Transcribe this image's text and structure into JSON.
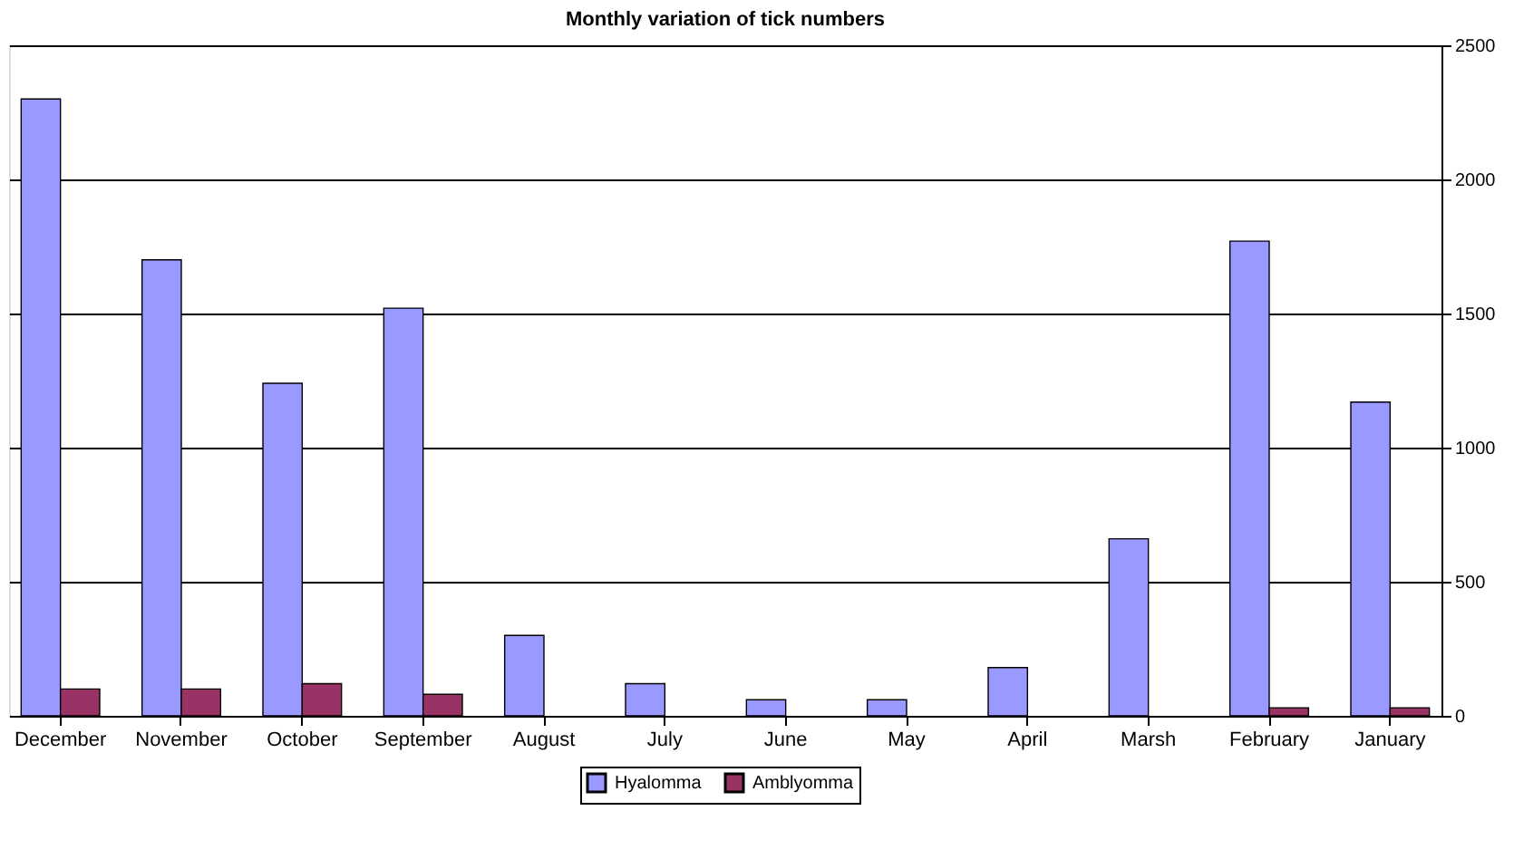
{
  "chart_data": {
    "type": "bar",
    "title": "Monthly variation of tick numbers",
    "categories": [
      "December",
      "November",
      "October",
      "September",
      "August",
      "July",
      "June",
      "May",
      "April",
      "Marsh",
      "February",
      "January"
    ],
    "series": [
      {
        "name": "Hyalomma",
        "color": "#9999ff",
        "values": [
          2300,
          1700,
          1240,
          1520,
          300,
          120,
          60,
          60,
          180,
          660,
          1770,
          1170
        ]
      },
      {
        "name": "Amblyomma",
        "color": "#993366",
        "values": [
          100,
          100,
          120,
          80,
          null,
          null,
          null,
          null,
          null,
          null,
          30,
          30
        ]
      }
    ],
    "ylim": [
      0,
      2500
    ],
    "yticks": [
      0,
      500,
      1000,
      1500,
      2000,
      2500
    ],
    "grid": "y",
    "legend": "bottom"
  }
}
